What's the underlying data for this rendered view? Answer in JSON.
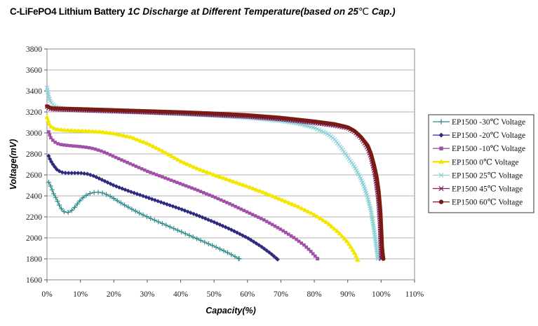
{
  "title": {
    "part1": "C-LiFePO4 Lithium Battery",
    "part2": "1C Discharge at Different Temperature(based on 25",
    "degree": "℃",
    "part3": " Cap.)"
  },
  "chart_data": {
    "type": "line",
    "xlabel": "Capacity(%)",
    "ylabel": "Voltage(mV)",
    "xlim": [
      0,
      110
    ],
    "ylim": [
      1600,
      3800
    ],
    "x_ticks": [
      0,
      10,
      20,
      30,
      40,
      50,
      60,
      70,
      80,
      90,
      100,
      110
    ],
    "x_tick_labels": [
      "0%",
      "10%",
      "20%",
      "30%",
      "40%",
      "50%",
      "60%",
      "70%",
      "80%",
      "90%",
      "100%",
      "110%"
    ],
    "y_ticks": [
      1600,
      1800,
      2000,
      2200,
      2400,
      2600,
      2800,
      3000,
      3200,
      3400,
      3600,
      3800
    ],
    "y_tick_labels": [
      "1600",
      "1800",
      "2000",
      "2200",
      "2400",
      "2600",
      "2800",
      "3000",
      "3200",
      "3400",
      "3600",
      "3800"
    ],
    "grid": "horizontal",
    "legend_position": "right",
    "series": [
      {
        "name": "EP1500 -30℃ Voltage",
        "color": "#2E8B8B",
        "marker": "plus",
        "x": [
          0.5,
          1,
          2,
          3,
          4,
          5,
          6,
          7,
          8,
          9,
          10,
          11,
          12,
          13,
          14,
          15,
          16,
          17,
          18,
          19,
          20,
          22,
          25,
          28,
          31,
          35,
          40,
          45,
          50,
          54,
          57.5
        ],
        "y": [
          2530,
          2500,
          2420,
          2360,
          2290,
          2250,
          2240,
          2250,
          2280,
          2320,
          2360,
          2390,
          2410,
          2425,
          2432,
          2435,
          2432,
          2425,
          2410,
          2395,
          2375,
          2335,
          2280,
          2230,
          2185,
          2130,
          2060,
          1990,
          1920,
          1860,
          1800
        ]
      },
      {
        "name": "EP1500 -20℃ Voltage",
        "color": "#2E2A7E",
        "marker": "diamond",
        "x": [
          0.5,
          1,
          2,
          3,
          4,
          5,
          6,
          8,
          10,
          12,
          14,
          16,
          18,
          20,
          22,
          25,
          30,
          35,
          40,
          45,
          50,
          55,
          60,
          64,
          67,
          69
        ],
        "y": [
          2780,
          2740,
          2690,
          2650,
          2630,
          2620,
          2618,
          2618,
          2618,
          2610,
          2590,
          2560,
          2530,
          2500,
          2475,
          2440,
          2385,
          2330,
          2275,
          2215,
          2150,
          2080,
          2000,
          1920,
          1850,
          1795
        ]
      },
      {
        "name": "EP1500 -10℃ Voltage",
        "color": "#A050A8",
        "marker": "square",
        "x": [
          0.5,
          1,
          2,
          3,
          4,
          5,
          7,
          10,
          12,
          14,
          16,
          18,
          20,
          25,
          30,
          35,
          40,
          45,
          50,
          55,
          60,
          65,
          70,
          74,
          77,
          79,
          81
        ],
        "y": [
          3010,
          2960,
          2920,
          2900,
          2890,
          2885,
          2878,
          2870,
          2862,
          2850,
          2830,
          2805,
          2775,
          2705,
          2635,
          2575,
          2515,
          2455,
          2390,
          2320,
          2245,
          2170,
          2080,
          2000,
          1930,
          1870,
          1800
        ]
      },
      {
        "name": "EP1500 0℃ Voltage",
        "color": "#F5E600",
        "marker": "triangle",
        "x": [
          0,
          0.5,
          1,
          2,
          3,
          5,
          8,
          12,
          16,
          20,
          25,
          30,
          35,
          40,
          45,
          50,
          55,
          60,
          65,
          70,
          75,
          80,
          84,
          87,
          90,
          92,
          93
        ],
        "y": [
          3150,
          3100,
          3065,
          3045,
          3035,
          3028,
          3022,
          3018,
          3010,
          2995,
          2960,
          2900,
          2820,
          2730,
          2660,
          2600,
          2545,
          2490,
          2430,
          2365,
          2300,
          2220,
          2140,
          2060,
          1960,
          1860,
          1790
        ]
      },
      {
        "name": "EP1500 25℃ Voltage",
        "color": "#8ED2D6",
        "marker": "x",
        "x": [
          0,
          0.5,
          1,
          2,
          3,
          5,
          10,
          20,
          30,
          40,
          50,
          60,
          70,
          75,
          80,
          84,
          86,
          88,
          90,
          92,
          94,
          95,
          96,
          97,
          98,
          99
        ],
        "y": [
          3430,
          3350,
          3300,
          3260,
          3245,
          3232,
          3222,
          3210,
          3195,
          3180,
          3165,
          3145,
          3115,
          3090,
          3050,
          2990,
          2940,
          2860,
          2770,
          2680,
          2560,
          2480,
          2380,
          2250,
          2050,
          1800
        ]
      },
      {
        "name": "EP1500 45℃ Voltage",
        "color": "#7A1E66",
        "marker": "x",
        "x": [
          0,
          0.5,
          1,
          2,
          4,
          10,
          20,
          30,
          40,
          50,
          60,
          70,
          80,
          86,
          90,
          92,
          94,
          96,
          97,
          98,
          98.5,
          99,
          99.3,
          99.6,
          99.8,
          100
        ],
        "y": [
          3250,
          3235,
          3228,
          3225,
          3222,
          3215,
          3205,
          3195,
          3185,
          3170,
          3155,
          3130,
          3095,
          3070,
          3045,
          3010,
          2950,
          2850,
          2760,
          2620,
          2520,
          2400,
          2300,
          2150,
          1950,
          1800
        ]
      },
      {
        "name": "EP1500 60℃ Voltage",
        "color": "#7B1A12",
        "marker": "circle",
        "x": [
          0,
          1,
          2,
          5,
          10,
          20,
          30,
          40,
          50,
          60,
          70,
          80,
          86,
          90,
          92,
          94,
          96,
          97,
          98,
          98.7,
          99.3,
          99.8,
          100.1,
          100.3,
          100.5,
          100.7
        ],
        "y": [
          3255,
          3240,
          3235,
          3232,
          3228,
          3218,
          3208,
          3198,
          3186,
          3170,
          3145,
          3110,
          3085,
          3055,
          3020,
          2960,
          2880,
          2800,
          2680,
          2580,
          2440,
          2260,
          2060,
          1910,
          1850,
          1800
        ]
      }
    ]
  }
}
